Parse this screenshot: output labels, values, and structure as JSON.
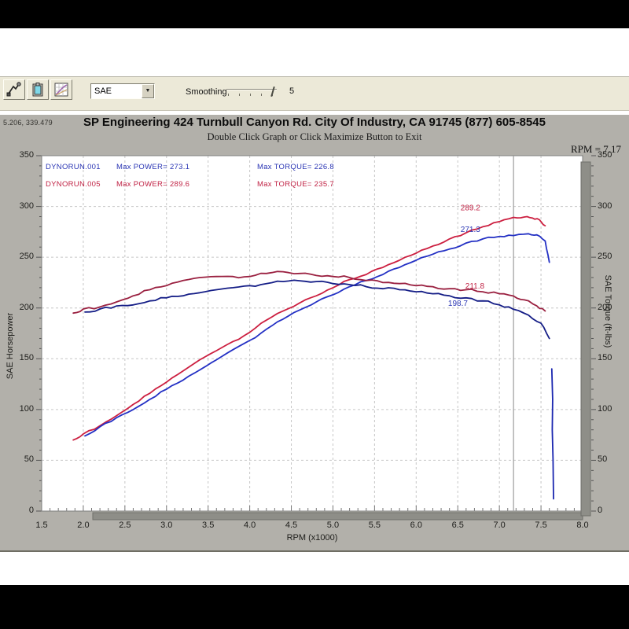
{
  "toolbar": {
    "buttons": [
      {
        "name": "trace-cursor-tool"
      },
      {
        "name": "copy-to-clipboard"
      },
      {
        "name": "graph-setup"
      }
    ],
    "dropdown_value": "SAE",
    "dropdown_arrow": "▼",
    "smoothing_label": "Smoothing",
    "smoothing_value": "5"
  },
  "header": {
    "cursor_coords": "5.206, 339.479",
    "title": "SP Engineering 424 Turnbull Canyon Rd. City Of Industry, CA 91745 (877) 605-8545",
    "subtitle": "Double Click Graph or Click Maximize Button to Exit"
  },
  "chart_data": {
    "type": "line",
    "title": "SP Engineering 424 Turnbull Canyon Rd. City Of Industry, CA 91745 (877) 605-8545",
    "subtitle": "Double Click Graph or Click Maximize Button to Exit",
    "xlabel": "RPM (x1000)",
    "ylabel_left": "SAE Horsepower",
    "ylabel_right": "SAE Torque (ft-lbs)",
    "xlim": [
      1.5,
      8.0
    ],
    "ylim": [
      0,
      350
    ],
    "x_ticks": [
      1.5,
      2.0,
      2.5,
      3.0,
      3.5,
      4.0,
      4.5,
      5.0,
      5.5,
      6.0,
      6.5,
      7.0,
      7.5,
      8.0
    ],
    "y_ticks": [
      0,
      50,
      100,
      150,
      200,
      250,
      300,
      350
    ],
    "grid": "dashed",
    "legend_position": "top-left-inside",
    "cursor": {
      "rpm": 7.17,
      "readout": "RPM = 7.17"
    },
    "legend": [
      {
        "run": "DYNORUN.001",
        "power": "Max POWER= 273.1",
        "torque": "Max TORQUE= 226.8",
        "color": "#2a35b4"
      },
      {
        "run": "DYNORUN.005",
        "power": "Max POWER= 289.6",
        "torque": "Max TORQUE= 235.7",
        "color": "#c02244"
      }
    ],
    "series": [
      {
        "name": "DYNORUN.005 SAE Horsepower",
        "unit": "hp",
        "color": "#cc1f40",
        "wiggle": 0.9,
        "points": [
          [
            1.88,
            70
          ],
          [
            2.0,
            76
          ],
          [
            2.2,
            84
          ],
          [
            2.4,
            94
          ],
          [
            2.6,
            105
          ],
          [
            2.8,
            116
          ],
          [
            3.0,
            127
          ],
          [
            3.2,
            138
          ],
          [
            3.4,
            149
          ],
          [
            3.6,
            158
          ],
          [
            3.8,
            167
          ],
          [
            4.0,
            176
          ],
          [
            4.2,
            188
          ],
          [
            4.4,
            197
          ],
          [
            4.6,
            205
          ],
          [
            4.8,
            212
          ],
          [
            5.0,
            220
          ],
          [
            5.2,
            228
          ],
          [
            5.4,
            233
          ],
          [
            5.6,
            240
          ],
          [
            5.8,
            247
          ],
          [
            6.0,
            254
          ],
          [
            6.2,
            261
          ],
          [
            6.4,
            268
          ],
          [
            6.6,
            274
          ],
          [
            6.8,
            280
          ],
          [
            7.0,
            285
          ],
          [
            7.17,
            289.2
          ],
          [
            7.3,
            289.6
          ],
          [
            7.4,
            288.5
          ],
          [
            7.48,
            287
          ],
          [
            7.55,
            281
          ]
        ]
      },
      {
        "name": "DYNORUN.001 SAE Horsepower",
        "unit": "hp",
        "color": "#2330c4",
        "wiggle": 0.9,
        "points": [
          [
            2.02,
            74
          ],
          [
            2.2,
            83
          ],
          [
            2.4,
            92
          ],
          [
            2.6,
            100
          ],
          [
            2.8,
            110
          ],
          [
            3.0,
            120
          ],
          [
            3.2,
            129
          ],
          [
            3.4,
            139
          ],
          [
            3.6,
            149
          ],
          [
            3.8,
            159
          ],
          [
            4.0,
            168
          ],
          [
            4.2,
            179
          ],
          [
            4.4,
            189
          ],
          [
            4.6,
            198
          ],
          [
            4.8,
            206
          ],
          [
            5.0,
            213
          ],
          [
            5.2,
            221
          ],
          [
            5.4,
            227
          ],
          [
            5.6,
            233
          ],
          [
            5.8,
            240
          ],
          [
            6.0,
            247
          ],
          [
            6.2,
            253
          ],
          [
            6.4,
            258
          ],
          [
            6.6,
            264
          ],
          [
            6.8,
            268
          ],
          [
            7.0,
            270.5
          ],
          [
            7.17,
            271.3
          ],
          [
            7.35,
            273.1
          ],
          [
            7.45,
            272
          ],
          [
            7.55,
            266
          ],
          [
            7.6,
            245
          ]
        ]
      },
      {
        "name": "DYNORUN.005 SAE Torque",
        "unit": "ft-lbs",
        "color": "#9a2040",
        "wiggle": 1.3,
        "points": [
          [
            1.88,
            195
          ],
          [
            2.0,
            199
          ],
          [
            2.2,
            201
          ],
          [
            2.4,
            206
          ],
          [
            2.6,
            212
          ],
          [
            2.8,
            218
          ],
          [
            3.0,
            222
          ],
          [
            3.2,
            227
          ],
          [
            3.4,
            230
          ],
          [
            3.6,
            231
          ],
          [
            3.8,
            231
          ],
          [
            4.0,
            231
          ],
          [
            4.2,
            234
          ],
          [
            4.4,
            235.7
          ],
          [
            4.6,
            234
          ],
          [
            4.8,
            232
          ],
          [
            5.0,
            231
          ],
          [
            5.2,
            230
          ],
          [
            5.4,
            227
          ],
          [
            5.6,
            225
          ],
          [
            5.8,
            224
          ],
          [
            6.0,
            222
          ],
          [
            6.2,
            221
          ],
          [
            6.4,
            219
          ],
          [
            6.6,
            218
          ],
          [
            6.8,
            216
          ],
          [
            7.0,
            214
          ],
          [
            7.17,
            211.8
          ],
          [
            7.3,
            208
          ],
          [
            7.45,
            202
          ],
          [
            7.55,
            197
          ]
        ]
      },
      {
        "name": "DYNORUN.001 SAE Torque",
        "unit": "ft-lbs",
        "color": "#141d86",
        "wiggle": 1.3,
        "points": [
          [
            2.02,
            196
          ],
          [
            2.2,
            199
          ],
          [
            2.4,
            202
          ],
          [
            2.6,
            203
          ],
          [
            2.8,
            207
          ],
          [
            3.0,
            210
          ],
          [
            3.2,
            212
          ],
          [
            3.4,
            215
          ],
          [
            3.6,
            218
          ],
          [
            3.8,
            220
          ],
          [
            4.0,
            222
          ],
          [
            4.2,
            224
          ],
          [
            4.4,
            226
          ],
          [
            4.6,
            226.8
          ],
          [
            4.8,
            226
          ],
          [
            5.0,
            224
          ],
          [
            5.2,
            223
          ],
          [
            5.4,
            221
          ],
          [
            5.6,
            219
          ],
          [
            5.8,
            218
          ],
          [
            6.0,
            216
          ],
          [
            6.2,
            214
          ],
          [
            6.4,
            212
          ],
          [
            6.6,
            210
          ],
          [
            6.8,
            207
          ],
          [
            7.0,
            203
          ],
          [
            7.17,
            198.7
          ],
          [
            7.35,
            193
          ],
          [
            7.5,
            185
          ],
          [
            7.6,
            170
          ]
        ]
      },
      {
        "name": "DYNORUN.001 run-end drop",
        "unit": "hp",
        "color": "#1b27b0",
        "wiggle": 0,
        "points": [
          [
            7.63,
            140
          ],
          [
            7.64,
            110
          ],
          [
            7.635,
            80
          ],
          [
            7.645,
            50
          ],
          [
            7.65,
            12
          ]
        ]
      }
    ],
    "annotations": [
      {
        "text": "289.2",
        "rpm": 6.77,
        "value": 296,
        "color": "#c02244",
        "anchor": "end"
      },
      {
        "text": "271.3",
        "rpm": 6.77,
        "value": 275,
        "color": "#2a35b4",
        "anchor": "end"
      },
      {
        "text": "211.8",
        "rpm": 6.82,
        "value": 219,
        "color": "#c02244",
        "anchor": "end"
      },
      {
        "text": "198.7",
        "rpm": 6.62,
        "value": 202,
        "color": "#2a35b4",
        "anchor": "end"
      }
    ],
    "colors": {
      "panel_bg": "#b2b0aa",
      "plot_bg": "#ffffff",
      "gridline": "#c6c6c6",
      "cursor_line": "#9c9c9c",
      "scrollbar": "#8e8e88",
      "plot_border": "#7f7f7f"
    }
  }
}
